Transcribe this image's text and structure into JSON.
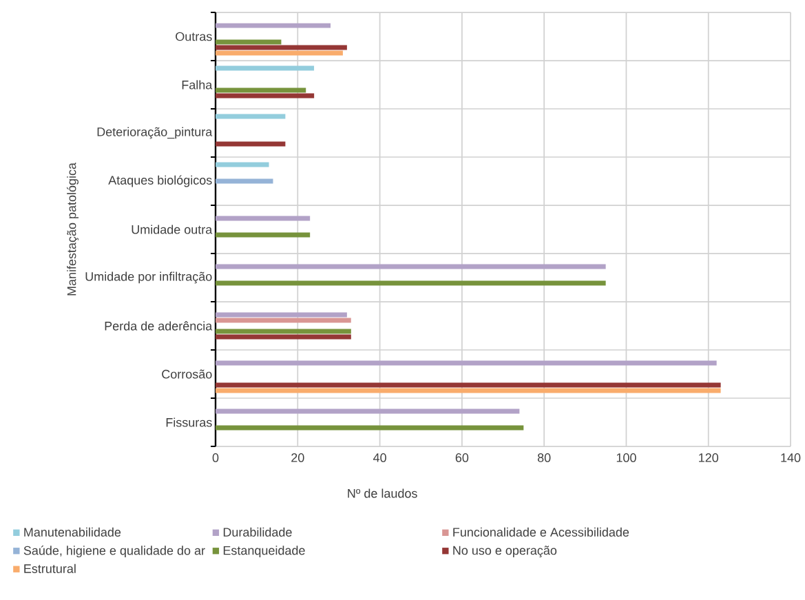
{
  "chart_data": {
    "type": "bar",
    "orientation": "horizontal",
    "xlabel": "Nº de laudos",
    "ylabel": "Manifestação patológica",
    "categories": [
      "Outras",
      "Falha",
      "Deterioração_pintura",
      "Ataques biológicos",
      "Umidade outra",
      "Umidade por infiltração",
      "Perda de aderência",
      "Corrosão",
      "Fissuras"
    ],
    "series": [
      {
        "name": "Manutenabilidade",
        "color": "#93cddd",
        "values": [
          null,
          24,
          17,
          13,
          null,
          null,
          null,
          null,
          null
        ]
      },
      {
        "name": "Durabilidade",
        "color": "#b2a2c7",
        "values": [
          28,
          null,
          null,
          null,
          23,
          95,
          32,
          122,
          74
        ]
      },
      {
        "name": "Funcionalidade e Acessibilidade",
        "color": "#d99694",
        "values": [
          null,
          null,
          null,
          null,
          null,
          null,
          33,
          null,
          null
        ]
      },
      {
        "name": "Saúde, higiene e qualidade do ar",
        "color": "#95b3d7",
        "values": [
          null,
          null,
          null,
          14,
          null,
          null,
          null,
          null,
          null
        ]
      },
      {
        "name": "Estanqueidade",
        "color": "#77933c",
        "values": [
          16,
          22,
          null,
          null,
          23,
          95,
          33,
          null,
          75
        ]
      },
      {
        "name": "No uso e operação",
        "color": "#953735",
        "values": [
          32,
          24,
          17,
          null,
          null,
          null,
          33,
          123,
          null
        ]
      },
      {
        "name": "Estrutural",
        "color": "#f9ac6c",
        "values": [
          31,
          null,
          null,
          null,
          null,
          null,
          null,
          123,
          null
        ]
      }
    ],
    "xlim": [
      0,
      140
    ],
    "xticks": [
      0,
      20,
      40,
      60,
      80,
      100,
      120,
      140
    ],
    "grid": true,
    "legend": "bottom"
  }
}
